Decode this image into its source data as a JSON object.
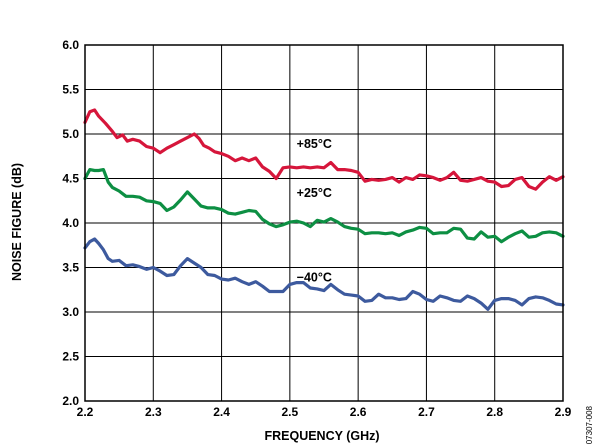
{
  "chart_data": {
    "type": "line",
    "title": "",
    "xlabel": "FREQUENCY (GHz)",
    "ylabel": "NOISE FIGURE (dB)",
    "xlim": [
      2.2,
      2.9
    ],
    "ylim": [
      2.0,
      6.0
    ],
    "x_ticks": [
      "2.2",
      "2.3",
      "2.4",
      "2.5",
      "2.6",
      "2.7",
      "2.8",
      "2.9"
    ],
    "y_ticks": [
      "2.0",
      "2.5",
      "3.0",
      "3.5",
      "4.0",
      "4.5",
      "5.0",
      "5.5",
      "6.0"
    ],
    "grid": true,
    "figure_code": "07307-008",
    "series": [
      {
        "name": "+85°C",
        "color": "#d6163b",
        "label_at": [
          2.51,
          4.84
        ],
        "points": [
          [
            2.2,
            5.13
          ],
          [
            2.207,
            5.25
          ],
          [
            2.214,
            5.27
          ],
          [
            2.22,
            5.2
          ],
          [
            2.23,
            5.12
          ],
          [
            2.24,
            5.03
          ],
          [
            2.247,
            4.96
          ],
          [
            2.255,
            4.99
          ],
          [
            2.262,
            4.92
          ],
          [
            2.27,
            4.94
          ],
          [
            2.28,
            4.92
          ],
          [
            2.29,
            4.86
          ],
          [
            2.3,
            4.84
          ],
          [
            2.31,
            4.79
          ],
          [
            2.32,
            4.84
          ],
          [
            2.33,
            4.88
          ],
          [
            2.34,
            4.92
          ],
          [
            2.35,
            4.96
          ],
          [
            2.36,
            5.0
          ],
          [
            2.367,
            4.95
          ],
          [
            2.374,
            4.87
          ],
          [
            2.382,
            4.84
          ],
          [
            2.39,
            4.8
          ],
          [
            2.4,
            4.78
          ],
          [
            2.41,
            4.75
          ],
          [
            2.42,
            4.7
          ],
          [
            2.43,
            4.73
          ],
          [
            2.44,
            4.7
          ],
          [
            2.45,
            4.73
          ],
          [
            2.46,
            4.63
          ],
          [
            2.47,
            4.58
          ],
          [
            2.48,
            4.5
          ],
          [
            2.49,
            4.62
          ],
          [
            2.5,
            4.63
          ],
          [
            2.51,
            4.62
          ],
          [
            2.52,
            4.63
          ],
          [
            2.53,
            4.62
          ],
          [
            2.54,
            4.63
          ],
          [
            2.55,
            4.62
          ],
          [
            2.56,
            4.68
          ],
          [
            2.57,
            4.6
          ],
          [
            2.58,
            4.6
          ],
          [
            2.59,
            4.59
          ],
          [
            2.6,
            4.57
          ],
          [
            2.61,
            4.47
          ],
          [
            2.62,
            4.49
          ],
          [
            2.63,
            4.48
          ],
          [
            2.64,
            4.49
          ],
          [
            2.65,
            4.51
          ],
          [
            2.66,
            4.46
          ],
          [
            2.67,
            4.51
          ],
          [
            2.68,
            4.49
          ],
          [
            2.69,
            4.54
          ],
          [
            2.7,
            4.53
          ],
          [
            2.71,
            4.51
          ],
          [
            2.72,
            4.48
          ],
          [
            2.73,
            4.51
          ],
          [
            2.74,
            4.57
          ],
          [
            2.75,
            4.48
          ],
          [
            2.76,
            4.47
          ],
          [
            2.77,
            4.49
          ],
          [
            2.78,
            4.51
          ],
          [
            2.79,
            4.47
          ],
          [
            2.8,
            4.46
          ],
          [
            2.81,
            4.41
          ],
          [
            2.82,
            4.42
          ],
          [
            2.83,
            4.49
          ],
          [
            2.84,
            4.51
          ],
          [
            2.85,
            4.41
          ],
          [
            2.86,
            4.38
          ],
          [
            2.87,
            4.46
          ],
          [
            2.88,
            4.52
          ],
          [
            2.89,
            4.48
          ],
          [
            2.9,
            4.52
          ]
        ]
      },
      {
        "name": "+25°C",
        "color": "#0d8f43",
        "label_at": [
          2.51,
          4.29
        ],
        "points": [
          [
            2.2,
            4.5
          ],
          [
            2.207,
            4.6
          ],
          [
            2.214,
            4.59
          ],
          [
            2.22,
            4.59
          ],
          [
            2.227,
            4.6
          ],
          [
            2.234,
            4.46
          ],
          [
            2.24,
            4.4
          ],
          [
            2.25,
            4.36
          ],
          [
            2.26,
            4.3
          ],
          [
            2.27,
            4.3
          ],
          [
            2.28,
            4.29
          ],
          [
            2.29,
            4.25
          ],
          [
            2.3,
            4.24
          ],
          [
            2.31,
            4.22
          ],
          [
            2.32,
            4.14
          ],
          [
            2.33,
            4.18
          ],
          [
            2.34,
            4.26
          ],
          [
            2.35,
            4.35
          ],
          [
            2.36,
            4.27
          ],
          [
            2.37,
            4.19
          ],
          [
            2.38,
            4.17
          ],
          [
            2.39,
            4.17
          ],
          [
            2.4,
            4.15
          ],
          [
            2.41,
            4.11
          ],
          [
            2.42,
            4.1
          ],
          [
            2.43,
            4.12
          ],
          [
            2.44,
            4.14
          ],
          [
            2.45,
            4.13
          ],
          [
            2.46,
            4.04
          ],
          [
            2.47,
            3.99
          ],
          [
            2.48,
            3.96
          ],
          [
            2.49,
            3.98
          ],
          [
            2.5,
            4.01
          ],
          [
            2.51,
            4.02
          ],
          [
            2.52,
            4.0
          ],
          [
            2.53,
            3.96
          ],
          [
            2.54,
            4.03
          ],
          [
            2.55,
            4.01
          ],
          [
            2.56,
            4.05
          ],
          [
            2.57,
            4.01
          ],
          [
            2.58,
            3.96
          ],
          [
            2.59,
            3.94
          ],
          [
            2.6,
            3.93
          ],
          [
            2.61,
            3.88
          ],
          [
            2.62,
            3.89
          ],
          [
            2.63,
            3.89
          ],
          [
            2.64,
            3.88
          ],
          [
            2.65,
            3.89
          ],
          [
            2.66,
            3.86
          ],
          [
            2.67,
            3.9
          ],
          [
            2.68,
            3.92
          ],
          [
            2.69,
            3.95
          ],
          [
            2.7,
            3.94
          ],
          [
            2.71,
            3.88
          ],
          [
            2.72,
            3.89
          ],
          [
            2.73,
            3.89
          ],
          [
            2.74,
            3.94
          ],
          [
            2.75,
            3.93
          ],
          [
            2.76,
            3.83
          ],
          [
            2.77,
            3.82
          ],
          [
            2.78,
            3.9
          ],
          [
            2.79,
            3.84
          ],
          [
            2.8,
            3.85
          ],
          [
            2.81,
            3.79
          ],
          [
            2.82,
            3.84
          ],
          [
            2.83,
            3.88
          ],
          [
            2.84,
            3.91
          ],
          [
            2.85,
            3.84
          ],
          [
            2.86,
            3.85
          ],
          [
            2.87,
            3.89
          ],
          [
            2.88,
            3.9
          ],
          [
            2.89,
            3.89
          ],
          [
            2.9,
            3.85
          ]
        ]
      },
      {
        "name": "−40°C",
        "color": "#3d5a9e",
        "label_at": [
          2.51,
          3.34
        ],
        "points": [
          [
            2.2,
            3.72
          ],
          [
            2.207,
            3.79
          ],
          [
            2.214,
            3.82
          ],
          [
            2.22,
            3.77
          ],
          [
            2.227,
            3.7
          ],
          [
            2.234,
            3.6
          ],
          [
            2.24,
            3.57
          ],
          [
            2.25,
            3.58
          ],
          [
            2.26,
            3.52
          ],
          [
            2.27,
            3.53
          ],
          [
            2.28,
            3.51
          ],
          [
            2.29,
            3.48
          ],
          [
            2.3,
            3.5
          ],
          [
            2.31,
            3.46
          ],
          [
            2.32,
            3.41
          ],
          [
            2.33,
            3.42
          ],
          [
            2.34,
            3.52
          ],
          [
            2.35,
            3.6
          ],
          [
            2.36,
            3.55
          ],
          [
            2.37,
            3.5
          ],
          [
            2.38,
            3.42
          ],
          [
            2.39,
            3.41
          ],
          [
            2.4,
            3.37
          ],
          [
            2.41,
            3.36
          ],
          [
            2.42,
            3.38
          ],
          [
            2.43,
            3.34
          ],
          [
            2.44,
            3.31
          ],
          [
            2.45,
            3.34
          ],
          [
            2.46,
            3.29
          ],
          [
            2.47,
            3.23
          ],
          [
            2.48,
            3.23
          ],
          [
            2.49,
            3.23
          ],
          [
            2.5,
            3.31
          ],
          [
            2.51,
            3.33
          ],
          [
            2.52,
            3.33
          ],
          [
            2.53,
            3.27
          ],
          [
            2.54,
            3.26
          ],
          [
            2.55,
            3.24
          ],
          [
            2.56,
            3.31
          ],
          [
            2.57,
            3.25
          ],
          [
            2.58,
            3.2
          ],
          [
            2.59,
            3.19
          ],
          [
            2.6,
            3.18
          ],
          [
            2.61,
            3.12
          ],
          [
            2.62,
            3.13
          ],
          [
            2.63,
            3.2
          ],
          [
            2.64,
            3.16
          ],
          [
            2.65,
            3.16
          ],
          [
            2.66,
            3.14
          ],
          [
            2.67,
            3.15
          ],
          [
            2.68,
            3.23
          ],
          [
            2.69,
            3.2
          ],
          [
            2.7,
            3.14
          ],
          [
            2.71,
            3.12
          ],
          [
            2.72,
            3.18
          ],
          [
            2.73,
            3.16
          ],
          [
            2.74,
            3.13
          ],
          [
            2.75,
            3.12
          ],
          [
            2.76,
            3.18
          ],
          [
            2.77,
            3.15
          ],
          [
            2.78,
            3.1
          ],
          [
            2.79,
            3.03
          ],
          [
            2.8,
            3.13
          ],
          [
            2.81,
            3.15
          ],
          [
            2.82,
            3.15
          ],
          [
            2.83,
            3.13
          ],
          [
            2.84,
            3.08
          ],
          [
            2.85,
            3.15
          ],
          [
            2.86,
            3.17
          ],
          [
            2.87,
            3.16
          ],
          [
            2.88,
            3.13
          ],
          [
            2.89,
            3.09
          ],
          [
            2.9,
            3.08
          ]
        ]
      }
    ]
  }
}
